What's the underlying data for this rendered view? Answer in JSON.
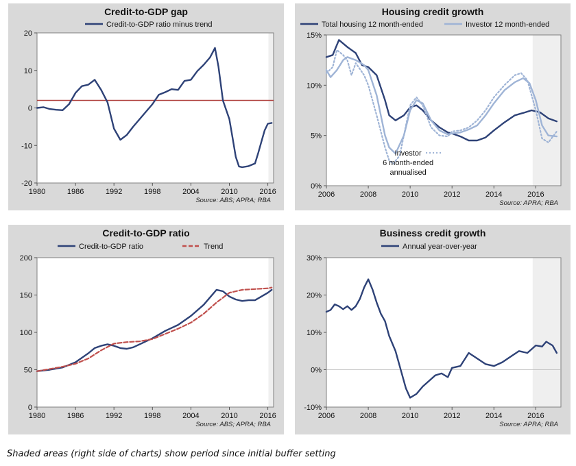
{
  "footnote": "Shaded areas (right side of charts) show period since initial buffer setting",
  "colors": {
    "navy": "#2e4277",
    "light_blue": "#9fb4d6",
    "red": "#b0413e",
    "trend": "#c0504d",
    "shade": "#efefef"
  },
  "chart_data": [
    {
      "type": "line",
      "title": "Credit-to-GDP gap",
      "source": "Source: ABS; APRA; RBA",
      "xlim": [
        1980,
        2016.9
      ],
      "ylim": [
        -20,
        20
      ],
      "x_ticks": [
        1980,
        1986,
        1992,
        1998,
        2004,
        2010,
        2016
      ],
      "y_ticks": [
        20,
        10,
        0,
        -10,
        -20
      ],
      "y_tick_labels": [
        "20",
        "10",
        "0",
        "-10",
        "-20"
      ],
      "shade_from": 2016.1,
      "reference_line": 2,
      "legend_position": "top-center",
      "series": [
        {
          "name": "Credit-to-GDP ratio minus trend",
          "color": "#2e4277",
          "points": [
            [
              1980,
              0
            ],
            [
              1981,
              0.2
            ],
            [
              1982,
              -0.3
            ],
            [
              1983,
              -0.5
            ],
            [
              1984,
              -0.6
            ],
            [
              1985,
              1
            ],
            [
              1986,
              4
            ],
            [
              1987,
              5.8
            ],
            [
              1988,
              6.2
            ],
            [
              1989,
              7.5
            ],
            [
              1990,
              4.8
            ],
            [
              1991,
              1.5
            ],
            [
              1992,
              -5.5
            ],
            [
              1993,
              -8.5
            ],
            [
              1994,
              -7.2
            ],
            [
              1995,
              -5
            ],
            [
              1996,
              -3
            ],
            [
              1997,
              -1
            ],
            [
              1998,
              1
            ],
            [
              1999,
              3.5
            ],
            [
              2000,
              4.2
            ],
            [
              2001,
              5
            ],
            [
              2002,
              4.8
            ],
            [
              2003,
              7.2
            ],
            [
              2004,
              7.5
            ],
            [
              2005,
              9.8
            ],
            [
              2006,
              11.5
            ],
            [
              2007,
              13.5
            ],
            [
              2007.75,
              16
            ],
            [
              2008.3,
              11
            ],
            [
              2009,
              2
            ],
            [
              2010,
              -3
            ],
            [
              2010.5,
              -8
            ],
            [
              2011,
              -13
            ],
            [
              2011.5,
              -15.6
            ],
            [
              2012,
              -15.8
            ],
            [
              2013,
              -15.5
            ],
            [
              2014,
              -14.8
            ],
            [
              2014.5,
              -12
            ],
            [
              2015,
              -9
            ],
            [
              2015.5,
              -6
            ],
            [
              2016,
              -4.2
            ],
            [
              2016.6,
              -4
            ]
          ]
        }
      ]
    },
    {
      "type": "line",
      "title": "Housing credit growth",
      "source": "Source: APRA; RBA",
      "xlim": [
        2006,
        2017.2
      ],
      "ylim": [
        0,
        15
      ],
      "x_ticks": [
        2006,
        2008,
        2010,
        2012,
        2014,
        2016
      ],
      "y_ticks": [
        15,
        10,
        5,
        0
      ],
      "y_tick_labels": [
        "15%",
        "10%",
        "5%",
        "0%"
      ],
      "shade_from": 2015.85,
      "legend_position": "top",
      "annotation": {
        "lines": [
          "Investor",
          "6 month-ended",
          "annualised"
        ],
        "x": 2009.9,
        "y": 3.0
      },
      "series": [
        {
          "name": "Total housing 12 month-ended",
          "color": "#2e4277",
          "points": [
            [
              2006,
              12.8
            ],
            [
              2006.3,
              13
            ],
            [
              2006.6,
              14.5
            ],
            [
              2007,
              13.8
            ],
            [
              2007.4,
              13.2
            ],
            [
              2007.7,
              12
            ],
            [
              2008,
              11.8
            ],
            [
              2008.4,
              11
            ],
            [
              2008.8,
              8.5
            ],
            [
              2009,
              7
            ],
            [
              2009.3,
              6.5
            ],
            [
              2009.7,
              7
            ],
            [
              2010,
              7.8
            ],
            [
              2010.3,
              8
            ],
            [
              2010.6,
              7.5
            ],
            [
              2011,
              6.5
            ],
            [
              2011.4,
              5.8
            ],
            [
              2011.8,
              5.3
            ],
            [
              2012,
              5.2
            ],
            [
              2012.4,
              4.9
            ],
            [
              2012.8,
              4.5
            ],
            [
              2013.2,
              4.5
            ],
            [
              2013.6,
              4.8
            ],
            [
              2014,
              5.5
            ],
            [
              2014.5,
              6.3
            ],
            [
              2015,
              7
            ],
            [
              2015.5,
              7.3
            ],
            [
              2015.8,
              7.5
            ],
            [
              2016.2,
              7.3
            ],
            [
              2016.6,
              6.7
            ],
            [
              2017,
              6.4
            ]
          ]
        },
        {
          "name": "Investor 12 month-ended",
          "color": "#9fb4d6",
          "points": [
            [
              2006,
              11.5
            ],
            [
              2006.2,
              10.8
            ],
            [
              2006.5,
              11.5
            ],
            [
              2006.8,
              12.5
            ],
            [
              2007,
              12.8
            ],
            [
              2007.4,
              12.5
            ],
            [
              2007.8,
              12
            ],
            [
              2008,
              11.5
            ],
            [
              2008.4,
              9
            ],
            [
              2008.8,
              5
            ],
            [
              2009,
              3.8
            ],
            [
              2009.3,
              3.2
            ],
            [
              2009.7,
              5
            ],
            [
              2010,
              7.5
            ],
            [
              2010.3,
              8.5
            ],
            [
              2010.6,
              8.2
            ],
            [
              2011,
              6.5
            ],
            [
              2011.4,
              5.5
            ],
            [
              2011.8,
              5.1
            ],
            [
              2012,
              5.2
            ],
            [
              2012.4,
              5.3
            ],
            [
              2012.8,
              5.6
            ],
            [
              2013.2,
              6
            ],
            [
              2013.6,
              7
            ],
            [
              2014,
              8.2
            ],
            [
              2014.5,
              9.5
            ],
            [
              2015,
              10.3
            ],
            [
              2015.4,
              10.7
            ],
            [
              2015.7,
              10.2
            ],
            [
              2016,
              8.5
            ],
            [
              2016.3,
              6
            ],
            [
              2016.6,
              5
            ],
            [
              2017,
              4.9
            ]
          ]
        },
        {
          "name": "Investor 6 month-ended annualised",
          "color": "#9fb4d6",
          "dashed": true,
          "points": [
            [
              2006,
              11.2
            ],
            [
              2006.3,
              11.8
            ],
            [
              2006.5,
              13.5
            ],
            [
              2006.8,
              13
            ],
            [
              2007,
              12.5
            ],
            [
              2007.2,
              11
            ],
            [
              2007.4,
              12.2
            ],
            [
              2007.8,
              11
            ],
            [
              2008,
              10
            ],
            [
              2008.4,
              7
            ],
            [
              2008.8,
              3.8
            ],
            [
              2009,
              2.5
            ],
            [
              2009.2,
              2.2
            ],
            [
              2009.5,
              3
            ],
            [
              2009.8,
              6
            ],
            [
              2010,
              8
            ],
            [
              2010.3,
              8.8
            ],
            [
              2010.6,
              8
            ],
            [
              2011,
              5.8
            ],
            [
              2011.4,
              5
            ],
            [
              2011.8,
              4.9
            ],
            [
              2012,
              5.4
            ],
            [
              2012.4,
              5.5
            ],
            [
              2012.8,
              5.8
            ],
            [
              2013.2,
              6.5
            ],
            [
              2013.6,
              7.5
            ],
            [
              2014,
              8.8
            ],
            [
              2014.5,
              10
            ],
            [
              2015,
              11
            ],
            [
              2015.3,
              11.2
            ],
            [
              2015.6,
              10.5
            ],
            [
              2016,
              7.5
            ],
            [
              2016.3,
              4.7
            ],
            [
              2016.6,
              4.3
            ],
            [
              2017,
              5.4
            ]
          ]
        }
      ]
    },
    {
      "type": "line",
      "title": "Credit-to-GDP ratio",
      "source": "Source: ABS; APRA; RBA",
      "xlim": [
        1980,
        2016.9
      ],
      "ylim": [
        0,
        200
      ],
      "x_ticks": [
        1980,
        1986,
        1992,
        1998,
        2004,
        2010,
        2016
      ],
      "y_ticks": [
        200,
        150,
        100,
        50,
        0
      ],
      "y_tick_labels": [
        "200",
        "150",
        "100",
        "50",
        "0"
      ],
      "shade_from": 2016.1,
      "legend_position": "top",
      "series": [
        {
          "name": "Credit-to-GDP ratio",
          "color": "#2e4277",
          "points": [
            [
              1980,
              48
            ],
            [
              1982,
              50
            ],
            [
              1984,
              53
            ],
            [
              1986,
              60
            ],
            [
              1988,
              72
            ],
            [
              1989,
              79
            ],
            [
              1990,
              82
            ],
            [
              1991,
              84
            ],
            [
              1992,
              82
            ],
            [
              1993,
              79
            ],
            [
              1994,
              78
            ],
            [
              1995,
              80
            ],
            [
              1996,
              84
            ],
            [
              1998,
              92
            ],
            [
              2000,
              102
            ],
            [
              2002,
              110
            ],
            [
              2004,
              122
            ],
            [
              2006,
              137
            ],
            [
              2007,
              147
            ],
            [
              2008,
              157
            ],
            [
              2009,
              155
            ],
            [
              2010,
              148
            ],
            [
              2011,
              144
            ],
            [
              2012,
              142
            ],
            [
              2013,
              143
            ],
            [
              2014,
              143
            ],
            [
              2015,
              148
            ],
            [
              2016,
              153
            ],
            [
              2016.6,
              157
            ]
          ]
        },
        {
          "name": "Trend",
          "color": "#c0504d",
          "dashed": true,
          "points": [
            [
              1980,
              48
            ],
            [
              1982,
              51
            ],
            [
              1984,
              54
            ],
            [
              1986,
              58
            ],
            [
              1988,
              65
            ],
            [
              1990,
              76
            ],
            [
              1992,
              85
            ],
            [
              1994,
              87
            ],
            [
              1996,
              88
            ],
            [
              1998,
              91
            ],
            [
              2000,
              98
            ],
            [
              2002,
              105
            ],
            [
              2004,
              113
            ],
            [
              2006,
              125
            ],
            [
              2008,
              140
            ],
            [
              2010,
              153
            ],
            [
              2012,
              157
            ],
            [
              2014,
              158
            ],
            [
              2016,
              159
            ],
            [
              2016.6,
              160
            ]
          ]
        }
      ]
    },
    {
      "type": "line",
      "title": "Business credit growth",
      "source": "Source: APRA; RBA",
      "xlim": [
        2006,
        2017.2
      ],
      "ylim": [
        -10,
        30
      ],
      "x_ticks": [
        2006,
        2008,
        2010,
        2012,
        2014,
        2016
      ],
      "y_ticks": [
        30,
        20,
        10,
        0,
        -10
      ],
      "y_tick_labels": [
        "30%",
        "20%",
        "10%",
        "0%",
        "-10%"
      ],
      "shade_from": 2015.85,
      "legend_position": "top",
      "series": [
        {
          "name": "Annual year-over-year",
          "color": "#2e4277",
          "points": [
            [
              2006,
              15.5
            ],
            [
              2006.2,
              16
            ],
            [
              2006.4,
              17.5
            ],
            [
              2006.6,
              17
            ],
            [
              2006.8,
              16.2
            ],
            [
              2007,
              17
            ],
            [
              2007.2,
              16
            ],
            [
              2007.4,
              17
            ],
            [
              2007.6,
              19
            ],
            [
              2007.8,
              22
            ],
            [
              2008,
              24.2
            ],
            [
              2008.2,
              21.5
            ],
            [
              2008.4,
              18
            ],
            [
              2008.6,
              15
            ],
            [
              2008.8,
              13
            ],
            [
              2009,
              9
            ],
            [
              2009.3,
              5
            ],
            [
              2009.6,
              -1
            ],
            [
              2009.8,
              -5
            ],
            [
              2010,
              -7.5
            ],
            [
              2010.3,
              -6.5
            ],
            [
              2010.6,
              -4.5
            ],
            [
              2011,
              -2.5
            ],
            [
              2011.2,
              -1.5
            ],
            [
              2011.5,
              -1
            ],
            [
              2011.8,
              -2
            ],
            [
              2012,
              0.5
            ],
            [
              2012.4,
              1
            ],
            [
              2012.8,
              4.5
            ],
            [
              2013.2,
              3
            ],
            [
              2013.6,
              1.5
            ],
            [
              2014,
              1
            ],
            [
              2014.4,
              2
            ],
            [
              2014.8,
              3.5
            ],
            [
              2015.2,
              5
            ],
            [
              2015.6,
              4.5
            ],
            [
              2016,
              6.5
            ],
            [
              2016.3,
              6.2
            ],
            [
              2016.5,
              7.5
            ],
            [
              2016.8,
              6.5
            ],
            [
              2017,
              4.5
            ]
          ]
        }
      ]
    }
  ]
}
